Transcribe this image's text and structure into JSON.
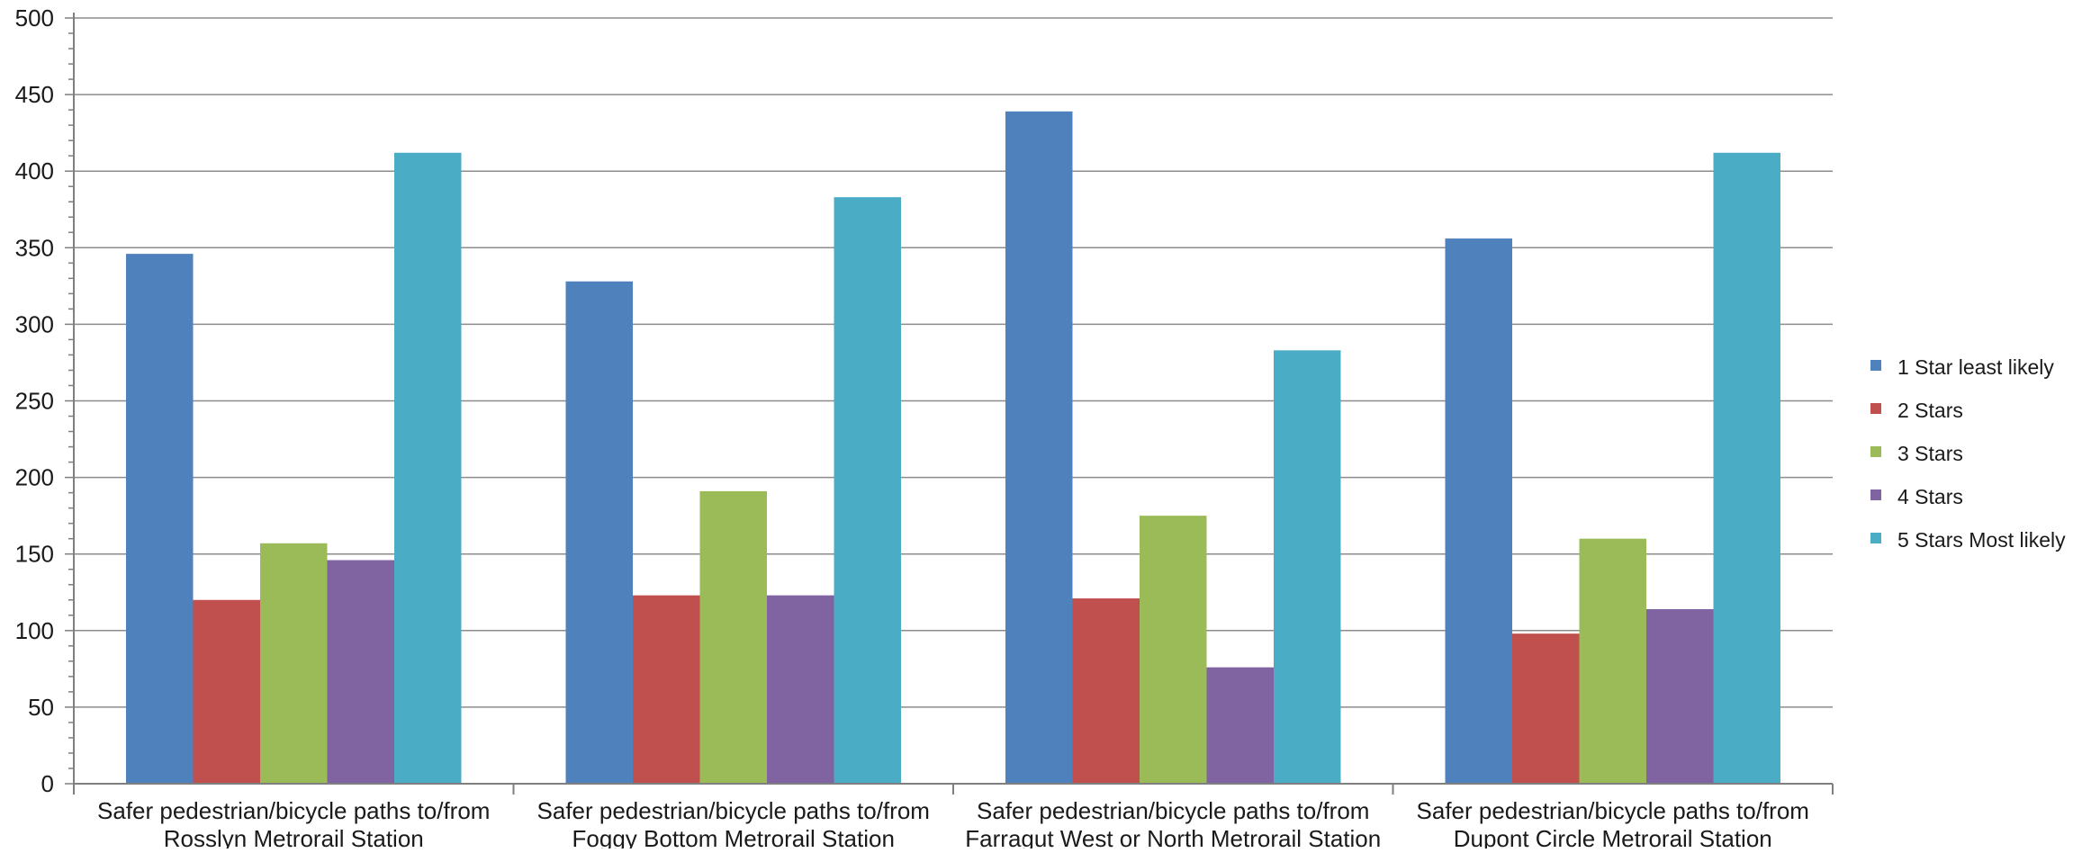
{
  "chart_data": {
    "type": "bar",
    "categories": [
      [
        "Safer pedestrian/bicycle paths to/from",
        "Rosslyn Metrorail Station"
      ],
      [
        "Safer pedestrian/bicycle paths to/from",
        "Foggy Bottom Metrorail Station"
      ],
      [
        "Safer pedestrian/bicycle paths to/from",
        "Farragut West or North Metrorail Station"
      ],
      [
        "Safer pedestrian/bicycle paths to/from",
        "Dupont Circle Metrorail Station"
      ]
    ],
    "series": [
      {
        "name": "1 Star least likely",
        "color": "#4F81BD",
        "values": [
          346,
          328,
          439,
          356
        ]
      },
      {
        "name": "2 Stars",
        "color": "#C0504D",
        "values": [
          120,
          123,
          121,
          98
        ]
      },
      {
        "name": "3 Stars",
        "color": "#9BBB59",
        "values": [
          157,
          191,
          175,
          160
        ]
      },
      {
        "name": "4 Stars",
        "color": "#8064A2",
        "values": [
          146,
          123,
          76,
          114
        ]
      },
      {
        "name": "5 Stars Most likely",
        "color": "#4BACC6",
        "values": [
          412,
          383,
          283,
          412
        ]
      }
    ],
    "yticks": [
      "0",
      "50",
      "100",
      "150",
      "200",
      "250",
      "300",
      "350",
      "400",
      "450",
      "500"
    ],
    "ylim": [
      0,
      500
    ],
    "grid": true,
    "legend_position": "right"
  }
}
